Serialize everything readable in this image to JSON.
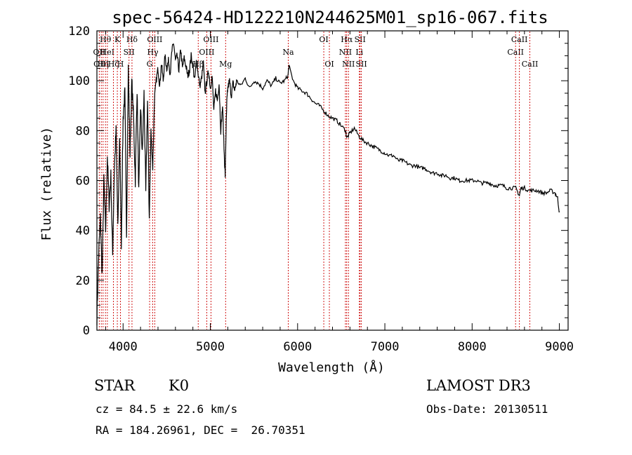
{
  "chart_data": {
    "type": "line",
    "title": "spec-56424-HD122210N244625M01_sp16-067.fits",
    "xlabel": "Wavelength (Å)",
    "ylabel": "Flux (relative)",
    "xlim": [
      3700,
      9100
    ],
    "ylim": [
      0,
      120
    ],
    "xticks": [
      4000,
      5000,
      6000,
      7000,
      8000,
      9000
    ],
    "yticks": [
      0,
      20,
      40,
      60,
      80,
      100,
      120
    ],
    "series": [
      {
        "name": "flux",
        "x": [
          3700,
          3720,
          3740,
          3760,
          3780,
          3800,
          3820,
          3840,
          3860,
          3880,
          3900,
          3920,
          3940,
          3960,
          3980,
          4000,
          4020,
          4040,
          4060,
          4080,
          4100,
          4120,
          4140,
          4160,
          4180,
          4200,
          4220,
          4240,
          4260,
          4280,
          4300,
          4320,
          4340,
          4360,
          4380,
          4400,
          4420,
          4440,
          4460,
          4480,
          4500,
          4520,
          4540,
          4560,
          4580,
          4600,
          4620,
          4640,
          4660,
          4680,
          4700,
          4720,
          4740,
          4760,
          4780,
          4800,
          4820,
          4840,
          4860,
          4880,
          4900,
          4920,
          4940,
          4960,
          4980,
          5000,
          5020,
          5040,
          5060,
          5080,
          5100,
          5120,
          5140,
          5160,
          5170,
          5180,
          5190,
          5200,
          5220,
          5240,
          5260,
          5280,
          5300,
          5350,
          5400,
          5450,
          5500,
          5550,
          5600,
          5650,
          5700,
          5750,
          5800,
          5850,
          5890,
          5900,
          5950,
          6000,
          6050,
          6100,
          6150,
          6200,
          6250,
          6300,
          6350,
          6400,
          6450,
          6500,
          6550,
          6563,
          6600,
          6650,
          6700,
          6750,
          6800,
          6850,
          6900,
          6950,
          7000,
          7050,
          7100,
          7150,
          7200,
          7250,
          7300,
          7350,
          7400,
          7450,
          7500,
          7550,
          7600,
          7650,
          7700,
          7750,
          7800,
          7850,
          7900,
          7950,
          8000,
          8050,
          8100,
          8150,
          8200,
          8250,
          8300,
          8350,
          8400,
          8450,
          8500,
          8542,
          8560,
          8600,
          8650,
          8700,
          8750,
          8800,
          8850,
          8900,
          8950,
          8980,
          9000
        ],
        "values": [
          5,
          30,
          45,
          22,
          60,
          40,
          70,
          50,
          62,
          30,
          65,
          80,
          40,
          78,
          35,
          85,
          95,
          40,
          105,
          70,
          100,
          85,
          60,
          97,
          55,
          90,
          70,
          95,
          55,
          92,
          45,
          80,
          65,
          93,
          100,
          105,
          98,
          107,
          100,
          110,
          105,
          108,
          103,
          112,
          115,
          108,
          110,
          104,
          113,
          105,
          109,
          106,
          102,
          104,
          110,
          106,
          100,
          108,
          103,
          98,
          101,
          107,
          95,
          100,
          104,
          97,
          102,
          88,
          96,
          92,
          99,
          80,
          90,
          70,
          62,
          80,
          92,
          97,
          100,
          94,
          99,
          96,
          100,
          98,
          101,
          97,
          100,
          99,
          97,
          100,
          98,
          101,
          99,
          100,
          102,
          106,
          100,
          97,
          96,
          95,
          93,
          91,
          90,
          88,
          86,
          85,
          84,
          82,
          80,
          77,
          79,
          81,
          78,
          76,
          75,
          74,
          73,
          72,
          71,
          70,
          70,
          68,
          68,
          67,
          66,
          66,
          65,
          65,
          64,
          63,
          63,
          62,
          62,
          61,
          61,
          60,
          60,
          60,
          60,
          60,
          59,
          59,
          59,
          58,
          58,
          58,
          57,
          57,
          57,
          54,
          57,
          57,
          56,
          56,
          56,
          55,
          55,
          56,
          55,
          53,
          47
        ]
      }
    ],
    "line_markers": [
      {
        "wavelength": 3727,
        "label": "OII",
        "row": 1
      },
      {
        "wavelength": 3750,
        "label": "OIII",
        "row": 2
      },
      {
        "wavelength": 3771,
        "label": "Hη",
        "row": 2
      },
      {
        "wavelength": 3798,
        "label": "Hθ",
        "row": 0
      },
      {
        "wavelength": 3820,
        "label": "HeI",
        "row": 1
      },
      {
        "wavelength": 3889,
        "label": "Hζ",
        "row": 2
      },
      {
        "wavelength": 3934,
        "label": "K",
        "row": 0
      },
      {
        "wavelength": 3970,
        "label": "H",
        "row": 2
      },
      {
        "wavelength": 4068,
        "label": "SII",
        "row": 1
      },
      {
        "wavelength": 4102,
        "label": "Hδ",
        "row": 0
      },
      {
        "wavelength": 4304,
        "label": "G",
        "row": 2
      },
      {
        "wavelength": 4340,
        "label": "Hγ",
        "row": 1
      },
      {
        "wavelength": 4363,
        "label": "OIII",
        "row": 0
      },
      {
        "wavelength": 4861,
        "label": "Hβ",
        "row": 2
      },
      {
        "wavelength": 4959,
        "label": "OIII",
        "row": 1
      },
      {
        "wavelength": 5007,
        "label": "OIII",
        "row": 0
      },
      {
        "wavelength": 5175,
        "label": "Mg",
        "row": 2
      },
      {
        "wavelength": 5893,
        "label": "Na",
        "row": 1
      },
      {
        "wavelength": 6300,
        "label": "OI",
        "row": 0
      },
      {
        "wavelength": 6364,
        "label": "OI",
        "row": 2
      },
      {
        "wavelength": 6548,
        "label": "NII",
        "row": 1
      },
      {
        "wavelength": 6563,
        "label": "Hα",
        "row": 0
      },
      {
        "wavelength": 6583,
        "label": "NII",
        "row": 2
      },
      {
        "wavelength": 6708,
        "label": "Li",
        "row": 1
      },
      {
        "wavelength": 6716,
        "label": "SII",
        "row": 0
      },
      {
        "wavelength": 6731,
        "label": "SII",
        "row": 2
      },
      {
        "wavelength": 8498,
        "label": "CaII",
        "row": 1
      },
      {
        "wavelength": 8542,
        "label": "CaII",
        "row": 0
      },
      {
        "wavelength": 8662,
        "label": "CaII",
        "row": 2
      }
    ],
    "colors": {
      "spectrum": "#000000",
      "markers": "#cc0000"
    }
  },
  "info": {
    "class": "STAR",
    "subclass": "K0",
    "survey": "LAMOST DR3",
    "cz": "cz = 84.5 ± 22.6 km/s",
    "obs_date": "Obs-Date: 20130511",
    "coords": "RA = 184.26961, DEC =  26.70351"
  }
}
